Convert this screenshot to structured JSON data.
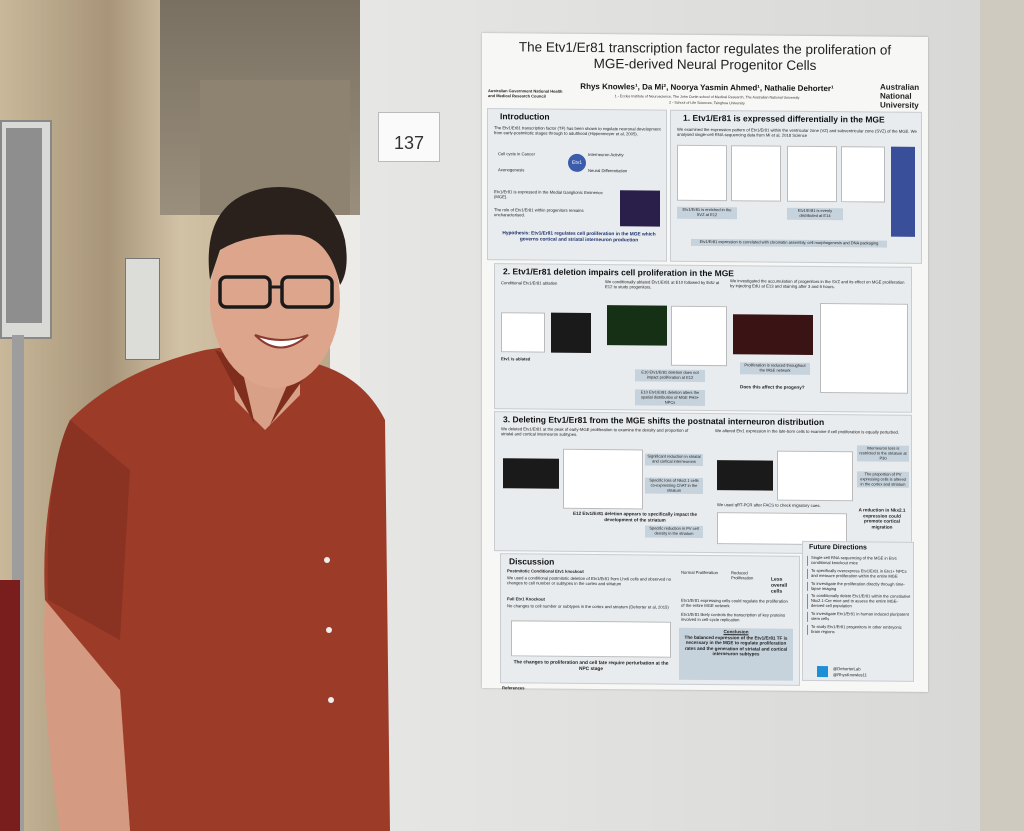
{
  "sign": {
    "number": "137"
  },
  "poster": {
    "title": "The Etv1/Er81 transcription factor regulates the proliferation of MGE-derived Neural Progenitor Cells",
    "authors": "Rhys Knowles¹, Da Mi², Noorya Yasmin Ahmed¹, Nathalie Dehorter¹",
    "affiliations": [
      "1 - Eccles Institute of Neuroscience, The John Curtin school of Medical Research, The Australian National University",
      "2 - School of Life Sciences, Tsinghua University"
    ],
    "logos": {
      "left": "Australian Government National Health and Medical Research Council",
      "right": "Australian National University"
    },
    "intro": {
      "heading": "Introduction",
      "text": "The Etv1/Er81 transcription factor (TF) has been shown to regulate neuronal development from early-postmitotic stages through to adulthood (Hippenmeyer et al, 2005).",
      "roles": [
        "Cell cycle in Cancer",
        "Interneuron Activity",
        "Axonogenesis",
        "Neural Differentiation"
      ],
      "hub": "Etv1",
      "points": [
        "Etv1/Er81 is expressed in the Medial Ganglionic Eminence (MGE).",
        "The role of Etv1/Er81 within progenitors remains uncharacterised."
      ],
      "hypothesis": "Hypothesis: Etv1/Er81 regulates cell proliferation in the MGE which governs cortical and striatal interneuron production"
    },
    "section1": {
      "heading": "1. Etv1/Er81 is expressed differentially in the MGE",
      "text": "We examined the expression pattern of Etv1/Er81 within the ventricular zone (VZ) and subventricular zone (SVZ) of the MGE. We analysed single-cell RNA sequencing data from Mi et al, 2018 Science",
      "findings": [
        "Etv1/Er81 is enriched in the SVZ at E12",
        "Etv1/Er81 is evenly distributed at E14"
      ],
      "footer": "Etv1/Er81 expression is correlated with chromatin assembly, cell morphogenesis and DNA packaging"
    },
    "section2": {
      "heading": "2. Etv1/Er81 deletion impairs cell proliferation in the MGE",
      "a": "Conditional Etv1/Er81 ablation",
      "b": "We conditionally ablated Etv1/Er81 at E10 followed by EdU at E12 to study progenitors.",
      "c": "We investigated the accumulation of progenitors in the SVZ and its effect on MGE proliferation by injecting EdU at E13 and staining after 3 and 6 hours.",
      "findings": [
        "Etv1 is ablated",
        "E10 Etv1/Er81 deletion does not impact proliferation at E12",
        "E10 Etv1/Er81 deletion alters the spatial distribution of MGE PH3+ NPCs",
        "Proliferation is reduced throughout the MGE network"
      ],
      "question": "Does this affect the progeny?"
    },
    "section3": {
      "heading": "3. Deleting Etv1/Er81 from the MGE shifts the postnatal interneuron distribution",
      "a": "We deleted Etv1/Er81 at the peak of early-MGE proliferation to examine the density and proportion of striatal and cortical interneuron subtypes.",
      "b": "We altered Etv1 expression in the late-born cells to examine if cell proliferation is equally perturbed.",
      "findings_a": [
        "Significant reduction in striatal and cortical interneurons",
        "Specific loss of Nkx2.1 cells co-expressing ChAT in the striatum",
        "Specific reduction in PV cell density in the striatum"
      ],
      "summary": "E12 Etv1/Er81 deletion appears to specifically impact the development of the striatum",
      "findings_b": [
        "Interneuron loss is restricted to the striatum at P30",
        "The proportion of PV expressing cells is altered in the cortex and striatum"
      ],
      "c": "We used qRT-PCR after FACS to check migratory cues.",
      "conclusion": "A reduction in Nkx2.1 expression could promote cortical migration"
    },
    "discussion": {
      "heading": "Discussion",
      "a_title": "Postmitotic Conditional Etv1 knockout",
      "a_text": "We used a conditional postmitotic deletion of Etv1/Er81 from Lhx6 cells and observed no changes to cell number or subtypes in the cortex and striatum",
      "full_title": "Full Etv1 Knockout",
      "full_text": "No changes to cell number or subtypes in the cortex and striatum (Dehorter et al, 2015)",
      "takeaway": "The changes to proliferation and cell fate require perturbation at the NPC stage",
      "b_labels": [
        "Normal Proliferation",
        "Reduced Proliferation",
        "Less overall cells"
      ],
      "b_points": [
        "Etv1/Er81 expressing cells could regulate the proliferation of the entire MGE network",
        "Etv1/Er81 likely controls the transcription of key proteins involved in cell-cycle replication"
      ],
      "conclusion_title": "Conclusion",
      "conclusion": "The balanced expression of the Etv1/Er81 TF is necessary in the MGE to regulate proliferation rates and the generation of striatal and cortical interneuron subtypes"
    },
    "future": {
      "heading": "Future Directions",
      "items": [
        "Single-cell RNA sequencing of the MGE in Etv1 conditional knockout mice",
        "To specifically overexpress Etv1/Er81 in Etv1+ NPCs and measure proliferation within the entire MGE",
        "To investigate the proliferation directly through time-lapse imaging",
        "To conditionally delete Etv1/Er81 within the constitutive Nkx2.1-Cre mice and to assess the entire MGE-derived cell population",
        "To investigate Etv1/Er81 in human induced pluripotent stem cells",
        "To study Etv1/Er81 progenitors in other embryonic brain regions"
      ],
      "handles": [
        "@DehorterLab",
        "@RhysKnowles11"
      ]
    },
    "references_heading": "References"
  }
}
